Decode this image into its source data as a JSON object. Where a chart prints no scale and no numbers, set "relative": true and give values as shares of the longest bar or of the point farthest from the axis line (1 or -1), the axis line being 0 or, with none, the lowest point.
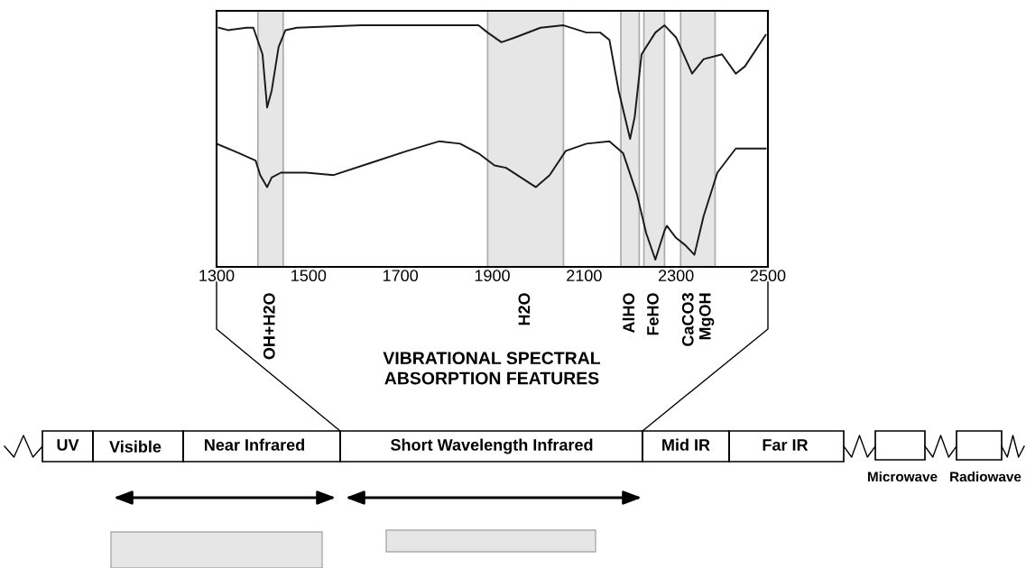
{
  "chart_data": {
    "type": "line",
    "relative": true,
    "xlim": [
      1300,
      2500
    ],
    "xticks": [
      1300,
      1500,
      1700,
      1900,
      2100,
      2300,
      2500
    ],
    "grid": false,
    "series": [
      {
        "color": "#1a1a1a",
        "x": [
          1305,
          1325,
          1365,
          1380,
          1400,
          1410,
          1420,
          1435,
          1450,
          1475,
          1615,
          1810,
          1870,
          1890,
          1920,
          1950,
          2005,
          2055,
          2105,
          2135,
          2155,
          2175,
          2200,
          2210,
          2225,
          2255,
          2275,
          2300,
          2335,
          2360,
          2400,
          2430,
          2450,
          2495
        ],
        "values": [
          0.99,
          0.98,
          0.99,
          0.99,
          0.88,
          0.66,
          0.73,
          0.91,
          0.98,
          0.99,
          1.0,
          1.0,
          1.0,
          0.97,
          0.93,
          0.95,
          0.99,
          1.0,
          0.97,
          0.97,
          0.94,
          0.73,
          0.53,
          0.62,
          0.88,
          0.97,
          1.0,
          0.95,
          0.8,
          0.86,
          0.88,
          0.8,
          0.83,
          0.96
        ]
      },
      {
        "color": "#1a1a1a",
        "x": [
          1300,
          1350,
          1385,
          1395,
          1410,
          1420,
          1440,
          1495,
          1555,
          1635,
          1715,
          1785,
          1830,
          1870,
          1905,
          1930,
          1995,
          2025,
          2060,
          2105,
          2155,
          2185,
          2215,
          2235,
          2255,
          2275,
          2280,
          2300,
          2320,
          2340,
          2360,
          2390,
          2430,
          2460,
          2495
        ],
        "values": [
          0.51,
          0.47,
          0.44,
          0.38,
          0.33,
          0.37,
          0.39,
          0.39,
          0.38,
          0.43,
          0.48,
          0.52,
          0.51,
          0.47,
          0.42,
          0.41,
          0.33,
          0.38,
          0.48,
          0.51,
          0.52,
          0.47,
          0.3,
          0.14,
          0.03,
          0.15,
          0.17,
          0.12,
          0.09,
          0.05,
          0.21,
          0.39,
          0.49,
          0.49,
          0.49
        ]
      }
    ],
    "bands": [
      {
        "axis": "x",
        "from": 1390,
        "to": 1445,
        "label": "OH+H2O",
        "color": "#e6e6e6"
      },
      {
        "axis": "x",
        "from": 1890,
        "to": 2055,
        "label": "H2O",
        "color": "#e6e6e6"
      },
      {
        "axis": "x",
        "from": 2180,
        "to": 2220,
        "label": "AlHO",
        "color": "#e6e6e6"
      },
      {
        "axis": "x",
        "from": 2230,
        "to": 2275,
        "label": "FeHO",
        "color": "#e6e6e6"
      },
      {
        "axis": "x",
        "from": 2310,
        "to": 2385,
        "label": "CaCO3 MgOH",
        "color": "#e6e6e6"
      }
    ],
    "annotations": [
      "VIBRATIONAL SPECTRAL\nABSORPTION FEATURES",
      "UV",
      "Visible",
      "Near Infrared",
      "Short Wavelength Infrared",
      "Mid IR",
      "Far IR",
      "Microwave",
      "Radiowave"
    ]
  }
}
